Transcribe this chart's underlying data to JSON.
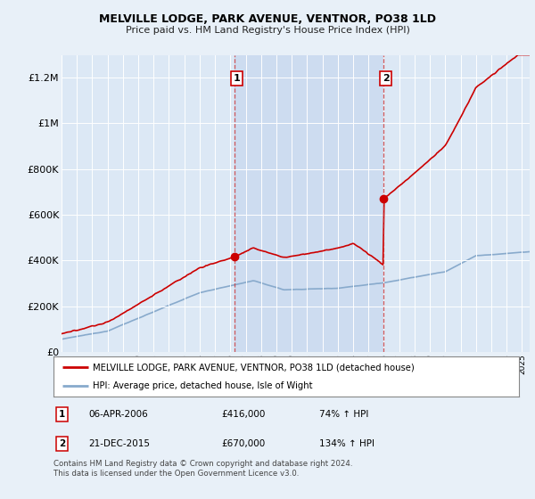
{
  "title": "MELVILLE LODGE, PARK AVENUE, VENTNOR, PO38 1LD",
  "subtitle": "Price paid vs. HM Land Registry's House Price Index (HPI)",
  "background_color": "#e8f0f8",
  "plot_bg_color": "#dce8f5",
  "highlight_color": "#c8d8ee",
  "ylim": [
    0,
    1300000
  ],
  "yticks": [
    0,
    200000,
    400000,
    600000,
    800000,
    1000000,
    1200000
  ],
  "ytick_labels": [
    "£0",
    "£200K",
    "£400K",
    "£600K",
    "£800K",
    "£1M",
    "£1.2M"
  ],
  "sale1": {
    "date_num": 2006.27,
    "price": 416000,
    "label": "1",
    "text": "06-APR-2006",
    "pct": "74% ↑ HPI"
  },
  "sale2": {
    "date_num": 2015.97,
    "price": 670000,
    "label": "2",
    "text": "21-DEC-2015",
    "pct": "134% ↑ HPI"
  },
  "legend_line1": "MELVILLE LODGE, PARK AVENUE, VENTNOR, PO38 1LD (detached house)",
  "legend_line2": "HPI: Average price, detached house, Isle of Wight",
  "footer": "Contains HM Land Registry data © Crown copyright and database right 2024.\nThis data is licensed under the Open Government Licence v3.0.",
  "red_color": "#cc0000",
  "blue_color": "#88aacc",
  "xmin": 1995,
  "xmax": 2025.5
}
